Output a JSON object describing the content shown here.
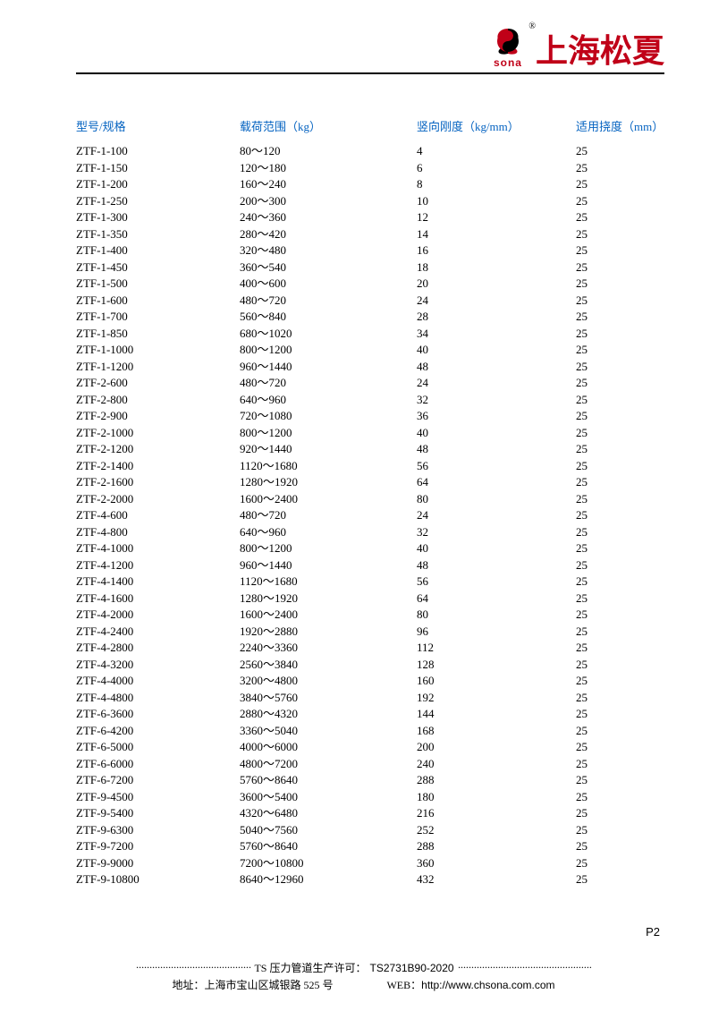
{
  "header": {
    "logo_text": "sona",
    "brand_cn": "上海松夏",
    "registered": "®"
  },
  "table": {
    "columns": [
      "型号/规格",
      "载荷范围（kg）",
      "竖向刚度（kg/mm）",
      "适用挠度（mm）"
    ],
    "header_color": "#0563c1",
    "rows": [
      [
        "ZTF-1-100",
        "80～120",
        "4",
        "25"
      ],
      [
        "ZTF-1-150",
        "120～180",
        "6",
        "25"
      ],
      [
        "ZTF-1-200",
        "160～240",
        "8",
        "25"
      ],
      [
        "ZTF-1-250",
        "200～300",
        "10",
        "25"
      ],
      [
        "ZTF-1-300",
        "240～360",
        "12",
        "25"
      ],
      [
        "ZTF-1-350",
        "280～420",
        "14",
        "25"
      ],
      [
        "ZTF-1-400",
        "320～480",
        "16",
        "25"
      ],
      [
        "ZTF-1-450",
        "360～540",
        "18",
        "25"
      ],
      [
        "ZTF-1-500",
        "400～600",
        "20",
        "25"
      ],
      [
        "ZTF-1-600",
        "480～720",
        "24",
        "25"
      ],
      [
        "ZTF-1-700",
        "560～840",
        "28",
        "25"
      ],
      [
        "ZTF-1-850",
        "680～1020",
        "34",
        "25"
      ],
      [
        "ZTF-1-1000",
        "800～1200",
        "40",
        "25"
      ],
      [
        "ZTF-1-1200",
        "960～1440",
        "48",
        "25"
      ],
      [
        "ZTF-2-600",
        "480～720",
        "24",
        "25"
      ],
      [
        "ZTF-2-800",
        "640～960",
        "32",
        "25"
      ],
      [
        "ZTF-2-900",
        "720～1080",
        "36",
        "25"
      ],
      [
        "ZTF-2-1000",
        "800～1200",
        "40",
        "25"
      ],
      [
        "ZTF-2-1200",
        "920～1440",
        "48",
        "25"
      ],
      [
        "ZTF-2-1400",
        "1120～1680",
        "56",
        "25"
      ],
      [
        "ZTF-2-1600",
        "1280～1920",
        "64",
        "25"
      ],
      [
        "ZTF-2-2000",
        "1600～2400",
        "80",
        "25"
      ],
      [
        "ZTF-4-600",
        "480～720",
        "24",
        "25"
      ],
      [
        "ZTF-4-800",
        "640～960",
        "32",
        "25"
      ],
      [
        "ZTF-4-1000",
        "800～1200",
        "40",
        "25"
      ],
      [
        "ZTF-4-1200",
        "960～1440",
        "48",
        "25"
      ],
      [
        "ZTF-4-1400",
        "1120～1680",
        "56",
        "25"
      ],
      [
        "ZTF-4-1600",
        "1280～1920",
        "64",
        "25"
      ],
      [
        "ZTF-4-2000",
        "1600～2400",
        "80",
        "25"
      ],
      [
        "ZTF-4-2400",
        "1920～2880",
        "96",
        "25"
      ],
      [
        "ZTF-4-2800",
        "2240～3360",
        "112",
        "25"
      ],
      [
        "ZTF-4-3200",
        "2560～3840",
        "128",
        "25"
      ],
      [
        "ZTF-4-4000",
        "3200～4800",
        "160",
        "25"
      ],
      [
        "ZTF-4-4800",
        "3840～5760",
        "192",
        "25"
      ],
      [
        "ZTF-6-3600",
        "2880～4320",
        "144",
        "25"
      ],
      [
        "ZTF-6-4200",
        "3360～5040",
        "168",
        "25"
      ],
      [
        "ZTF-6-5000",
        "4000～6000",
        "200",
        "25"
      ],
      [
        "ZTF-6-6000",
        "4800～7200",
        "240",
        "25"
      ],
      [
        "ZTF-6-7200",
        "5760～8640",
        "288",
        "25"
      ],
      [
        "ZTF-9-4500",
        "3600～5400",
        "180",
        "25"
      ],
      [
        "ZTF-9-5400",
        "4320～6480",
        "216",
        "25"
      ],
      [
        "ZTF-9-6300",
        "5040～7560",
        "252",
        "25"
      ],
      [
        "ZTF-9-7200",
        "5760～8640",
        "288",
        "25"
      ],
      [
        "ZTF-9-9000",
        "7200～10800",
        "360",
        "25"
      ],
      [
        "ZTF-9-10800",
        "8640～12960",
        "432",
        "25"
      ]
    ]
  },
  "footer": {
    "page_label": "P",
    "page_num": "2",
    "license_prefix": "TS 压力管道生产许可：",
    "license_no": "TS2731B90-2020",
    "address_label": "地址：",
    "address": "上海市宝山区城银路 525 号",
    "web_label": "WEB：",
    "web": "http://www.chsona.com.com"
  },
  "colors": {
    "brand_red": "#c00018",
    "link_blue": "#0563c1",
    "text": "#000000",
    "background": "#ffffff"
  }
}
